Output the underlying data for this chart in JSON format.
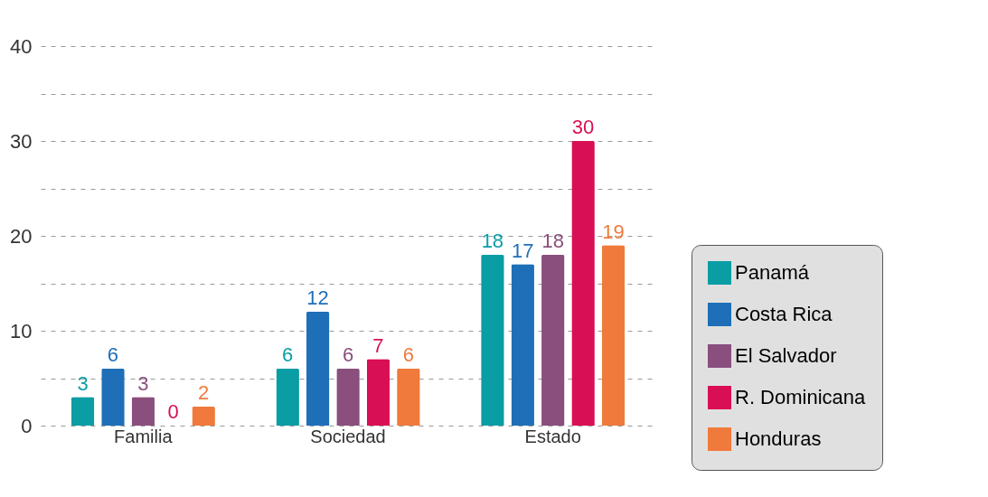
{
  "chart_data": {
    "type": "bar",
    "categories": [
      "Familia",
      "Sociedad",
      "Estado"
    ],
    "series": [
      {
        "name": "Panamá",
        "color": "#0a9da4",
        "values": [
          3,
          6,
          18
        ]
      },
      {
        "name": "Costa Rica",
        "color": "#1f6fb8",
        "values": [
          6,
          12,
          17
        ]
      },
      {
        "name": "El Salvador",
        "color": "#8a4f7d",
        "values": [
          3,
          6,
          18
        ]
      },
      {
        "name": "R. Dominicana",
        "color": "#d90f55",
        "values": [
          0,
          7,
          30
        ]
      },
      {
        "name": "Honduras",
        "color": "#f07a3c",
        "values": [
          2,
          6,
          19
        ]
      }
    ],
    "ylim": [
      0,
      40
    ],
    "yticks": [
      0,
      {
        "value": 5,
        "label": null
      },
      10,
      {
        "value": 15,
        "label": null
      },
      20,
      {
        "value": 25,
        "label": null
      },
      30,
      {
        "value": 35,
        "label": null
      },
      40
    ],
    "grid": true,
    "legend": "bottom right",
    "data_labels": true
  }
}
